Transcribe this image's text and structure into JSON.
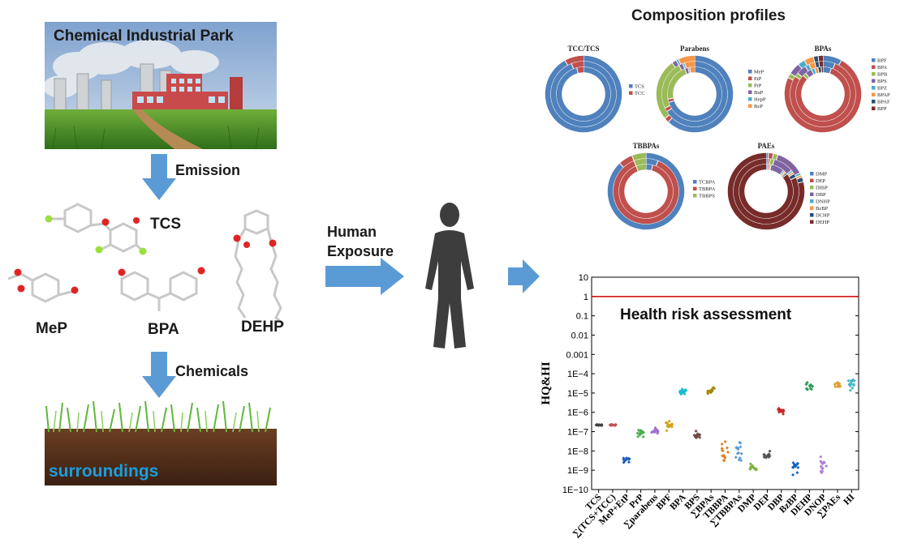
{
  "labels": {
    "park_title": "Chemical Industrial Park",
    "emission": "Emission",
    "chemicals": "Chemicals",
    "surroundings": "surroundings",
    "human_exposure_line1": "Human",
    "human_exposure_line2": "Exposure",
    "tcs": "TCS",
    "mep": "MeP",
    "bpa": "BPA",
    "dehp": "DEHP",
    "composition_title": "Composition profiles"
  },
  "colors": {
    "arrow_blue": "#5b9bd5",
    "surroundings_text": "#1a9fe0",
    "threshold_red": "#cc0000"
  },
  "chart_data": [
    {
      "type": "pie",
      "title": "TCC/TCS",
      "variant": "triple-ring donut",
      "legend": [
        "TCS",
        "TCC"
      ],
      "colors": [
        "#4f81bd",
        "#c0504d"
      ],
      "rings": [
        [
          0.92,
          0.08
        ],
        [
          0.94,
          0.06
        ],
        [
          0.96,
          0.04
        ]
      ]
    },
    {
      "type": "pie",
      "title": "Parabens",
      "variant": "triple-ring donut",
      "legend": [
        "MeP",
        "EtP",
        "PrP",
        "BuP",
        "HepP",
        "BzP"
      ],
      "colors": [
        "#4f81bd",
        "#c0504d",
        "#9bbb59",
        "#8064a2",
        "#4bacc6",
        "#f79646"
      ],
      "rings": [
        [
          0.62,
          0.02,
          0.26,
          0.02,
          0.01,
          0.07
        ],
        [
          0.66,
          0.02,
          0.24,
          0.02,
          0.01,
          0.05
        ],
        [
          0.7,
          0.02,
          0.22,
          0.02,
          0.01,
          0.03
        ]
      ]
    },
    {
      "type": "pie",
      "title": "BPAs",
      "variant": "triple-ring donut",
      "legend": [
        "BPF",
        "BPA",
        "BPB",
        "BPS",
        "BPZ",
        "BPAP",
        "BPAF",
        "BPP"
      ],
      "colors": [
        "#4f81bd",
        "#c0504d",
        "#9bbb59",
        "#8064a2",
        "#4bacc6",
        "#f79646",
        "#2c4d75",
        "#772c2a"
      ],
      "rings": [
        [
          0.08,
          0.74,
          0.02,
          0.05,
          0.03,
          0.04,
          0.02,
          0.02
        ],
        [
          0.06,
          0.78,
          0.02,
          0.05,
          0.02,
          0.03,
          0.02,
          0.02
        ],
        [
          0.05,
          0.82,
          0.02,
          0.04,
          0.02,
          0.02,
          0.02,
          0.01
        ]
      ]
    },
    {
      "type": "pie",
      "title": "TBBPAs",
      "variant": "triple-ring donut",
      "legend": [
        "TCBPA",
        "TBBPA",
        "TBBPS"
      ],
      "colors": [
        "#4f81bd",
        "#c0504d",
        "#9bbb59"
      ],
      "rings": [
        [
          0.88,
          0.06,
          0.06
        ],
        [
          0.06,
          0.88,
          0.06
        ],
        [
          0.04,
          0.9,
          0.06
        ]
      ]
    },
    {
      "type": "pie",
      "title": "PAEs",
      "variant": "triple-ring donut",
      "legend": [
        "DMP",
        "DEP",
        "DIBP",
        "DBP",
        "DNHP",
        "BzBP",
        "DCHP",
        "DEHP"
      ],
      "colors": [
        "#4f81bd",
        "#c0504d",
        "#9bbb59",
        "#8064a2",
        "#4bacc6",
        "#f79646",
        "#2c4d75",
        "#772c2a"
      ],
      "rings": [
        [
          0.01,
          0.02,
          0.02,
          0.12,
          0.01,
          0.01,
          0.02,
          0.79
        ],
        [
          0.01,
          0.01,
          0.02,
          0.1,
          0.01,
          0.01,
          0.02,
          0.82
        ],
        [
          0.01,
          0.01,
          0.01,
          0.08,
          0.01,
          0.01,
          0.01,
          0.86
        ]
      ]
    },
    {
      "type": "scatter",
      "title": "Health risk assessment",
      "ylabel": "HQ&HI",
      "xlabel": "",
      "yscale": "log",
      "ylim": [
        1e-10,
        10
      ],
      "yticks": [
        "1E−10",
        "1E−9",
        "1E−8",
        "1E−7",
        "1E−6",
        "1E−5",
        "1E−4",
        "0.001",
        "0.01",
        "0.1",
        "1",
        "10"
      ],
      "threshold": 1,
      "categories": [
        "TCS",
        "∑(TCS+TCC)",
        "MeP+EtP",
        "PrP",
        "∑parabens",
        "BPF",
        "BPA",
        "BPS",
        "∑BPAs",
        "TBBPA",
        "∑TBBPAs",
        "DMP",
        "DEP",
        "DBP",
        "BzBP",
        "DEHP",
        "DNOP",
        "∑PAEs",
        "HI"
      ],
      "series": [
        {
          "center": 2.2e-07,
          "low": 2e-07,
          "high": 2.5e-07,
          "color": "#404040"
        },
        {
          "center": 2.2e-07,
          "low": 2e-07,
          "high": 2.4e-07,
          "color": "#c0504d"
        },
        {
          "center": 3.5e-09,
          "low": 2.2e-09,
          "high": 5e-09,
          "color": "#1f5fbf"
        },
        {
          "center": 1e-07,
          "low": 5e-08,
          "high": 1.5e-07,
          "color": "#4caf50"
        },
        {
          "center": 1e-07,
          "low": 6e-08,
          "high": 1.6e-07,
          "color": "#9c6fce"
        },
        {
          "center": 2.5e-07,
          "low": 1e-07,
          "high": 4e-07,
          "color": "#d4a017"
        },
        {
          "center": 1.3e-05,
          "low": 8e-06,
          "high": 2e-05,
          "color": "#17becf"
        },
        {
          "center": 6e-08,
          "low": 4e-08,
          "high": 1.2e-07,
          "color": "#6d4c41"
        },
        {
          "center": 1.3e-05,
          "low": 8e-06,
          "high": 2e-05,
          "color": "#a08a00"
        },
        {
          "center": 8e-09,
          "low": 3e-09,
          "high": 4.5e-07,
          "color": "#e67e22"
        },
        {
          "center": 8e-09,
          "low": 3e-09,
          "high": 4.5e-07,
          "color": "#5b9bd5"
        },
        {
          "center": 1.3e-09,
          "low": 9e-10,
          "high": 2.5e-09,
          "color": "#7cb342"
        },
        {
          "center": 6e-09,
          "low": 4e-09,
          "high": 1e-08,
          "color": "#555555"
        },
        {
          "center": 1.2e-06,
          "low": 8e-07,
          "high": 1.6e-06,
          "color": "#c62828"
        },
        {
          "center": 2e-09,
          "low": 5e-10,
          "high": 4e-09,
          "color": "#1565c0"
        },
        {
          "center": 2e-05,
          "low": 1.3e-05,
          "high": 5e-05,
          "color": "#2e9e5b"
        },
        {
          "center": 1.5e-09,
          "low": 5e-10,
          "high": 8e-09,
          "color": "#ab7fd1"
        },
        {
          "center": 2.5e-05,
          "low": 1.5e-05,
          "high": 4e-05,
          "color": "#e0a030"
        },
        {
          "center": 3.5e-05,
          "low": 1.2e-05,
          "high": 5e-05,
          "color": "#3fb8c8"
        }
      ]
    }
  ]
}
